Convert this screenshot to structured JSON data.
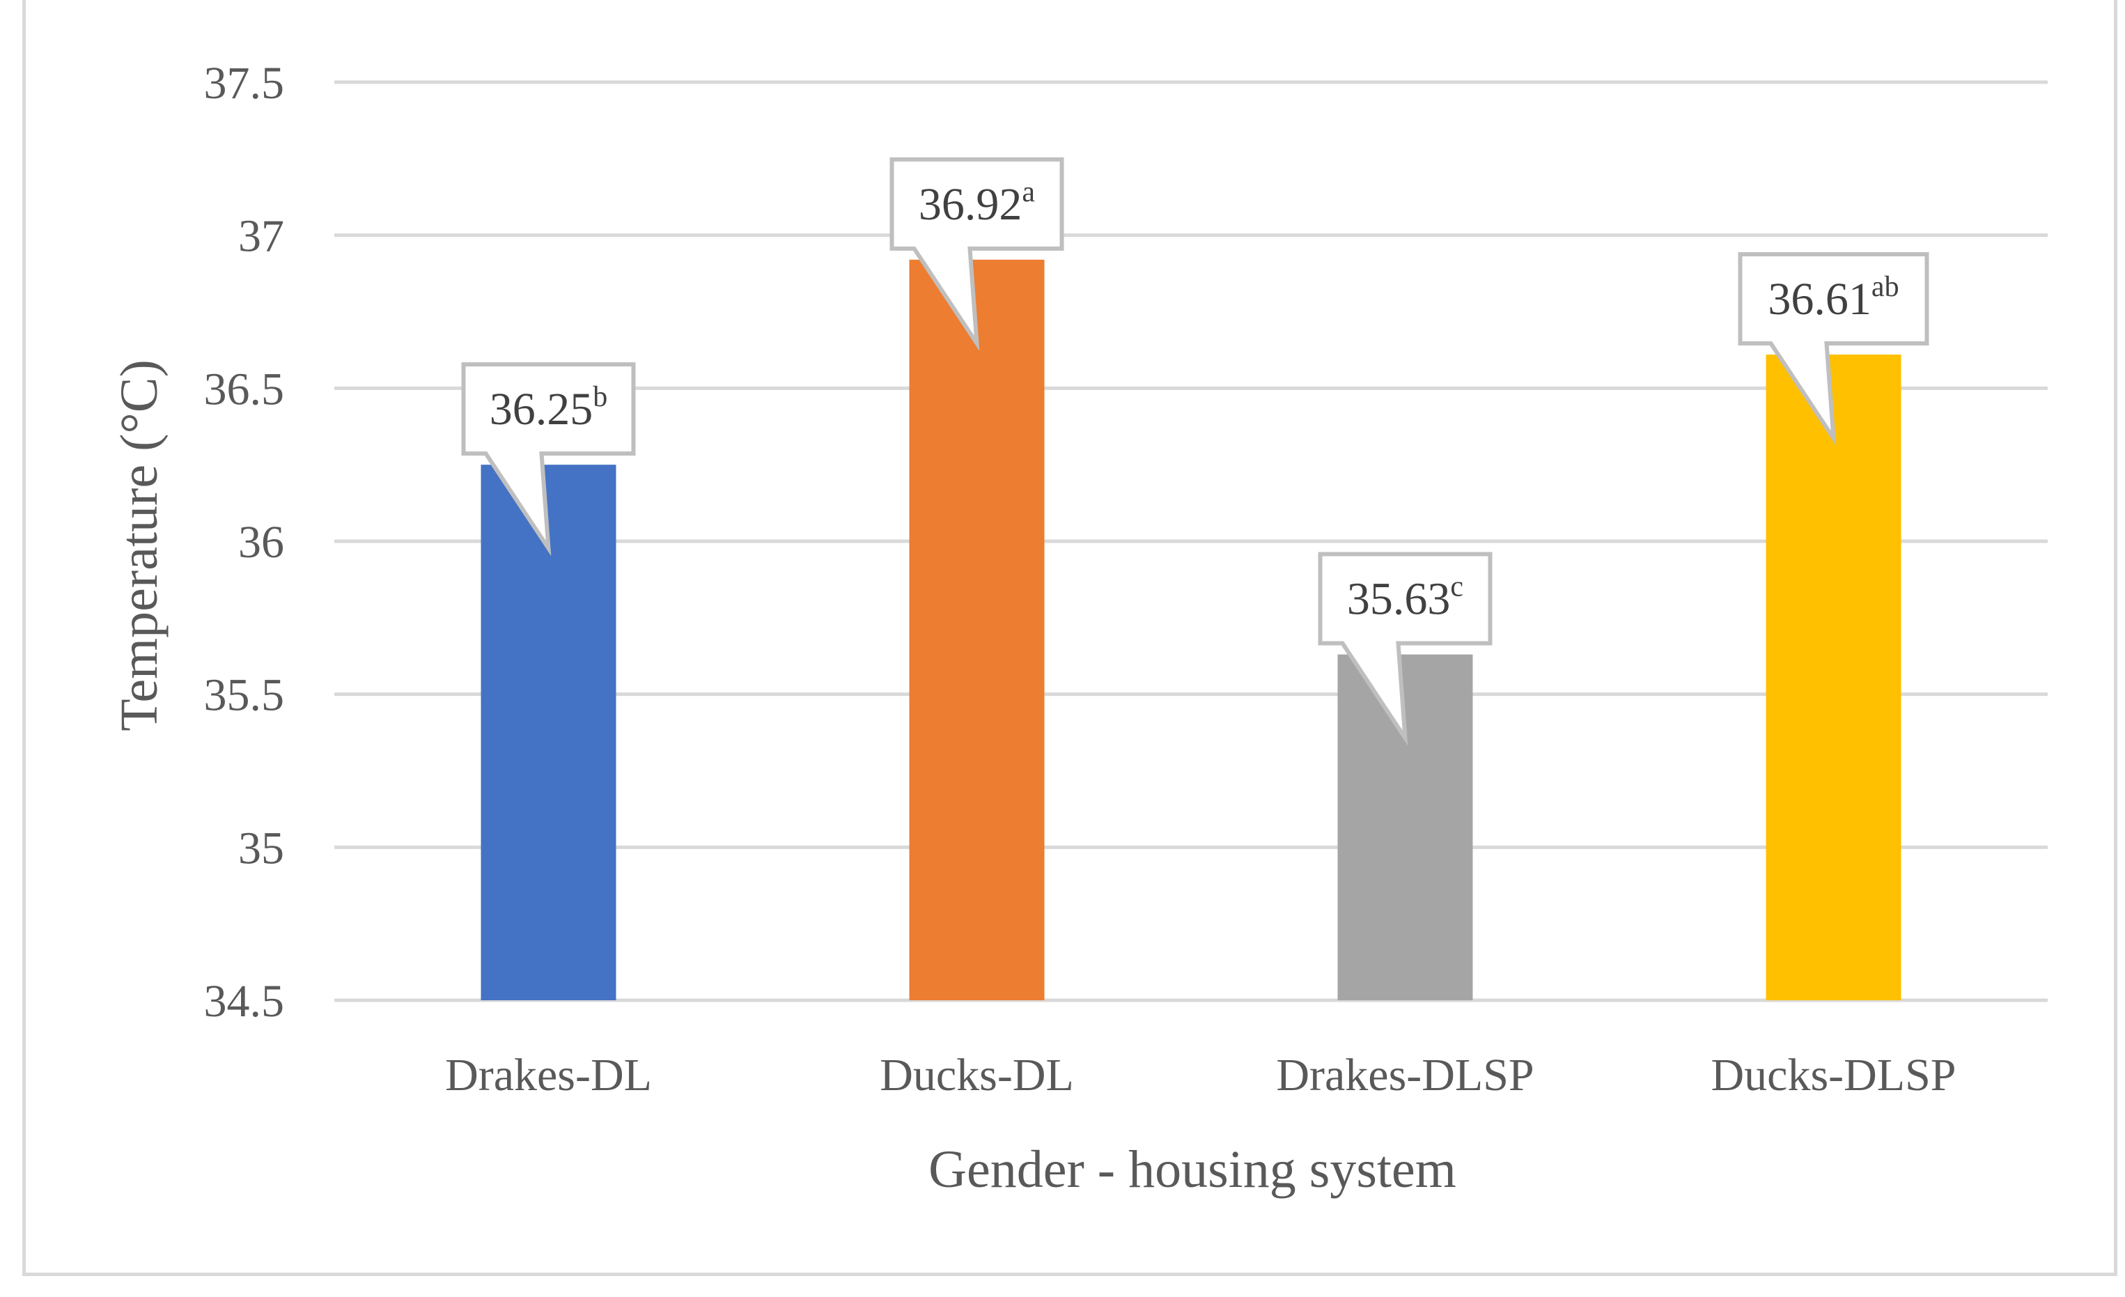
{
  "chart_data": {
    "type": "bar",
    "title": "",
    "xlabel": "Gender - housing system",
    "ylabel": "Temperature (°C)",
    "ylim": [
      34.5,
      37.5
    ],
    "yticks": [
      "34.5",
      "35",
      "35.5",
      "36",
      "36.5",
      "37",
      "37.5"
    ],
    "grid": true,
    "legend": "none",
    "categories": [
      "Drakes-DL",
      "Ducks-DL",
      "Drakes-DLSP",
      "Ducks-DLSP"
    ],
    "values": [
      36.25,
      36.92,
      35.63,
      36.61
    ],
    "labels": [
      {
        "value": "36.25",
        "sup": "b"
      },
      {
        "value": "36.92",
        "sup": "a"
      },
      {
        "value": "35.63",
        "sup": "c"
      },
      {
        "value": "36.61",
        "sup": "ab"
      }
    ],
    "colors": [
      "#4472c4",
      "#ed7d31",
      "#a5a5a5",
      "#ffc000"
    ]
  }
}
